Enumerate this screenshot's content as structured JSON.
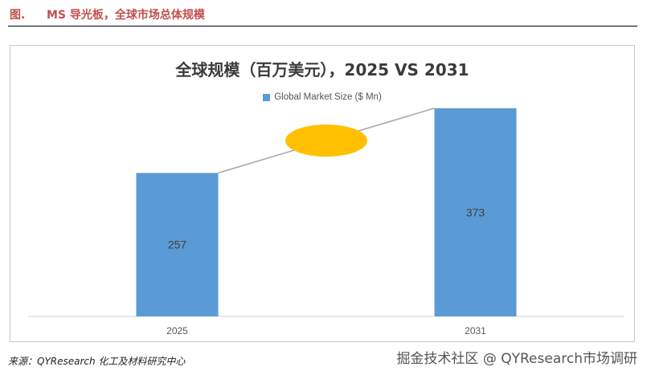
{
  "header": {
    "figure_label": "图.",
    "title": "MS 导光板，全球市场总体规模"
  },
  "chart_data": {
    "type": "bar",
    "title": "全球规模（百万美元），2025 VS 2031",
    "categories": [
      "2025",
      "2031"
    ],
    "series": [
      {
        "name": "Global Market Size ($ Mn)",
        "values": [
          257,
          373
        ]
      }
    ],
    "ylim": [
      0,
      400
    ],
    "grid": false,
    "legend_position": "top",
    "colors": {
      "bar": "#5b9bd5",
      "ellipse": "#ffc000",
      "connector": "#a6a6a6"
    }
  },
  "footer": {
    "source": "来源：QYResearch  化工及材料研究中心",
    "watermark": "掘金技术社区 @ QYResearch市场调研"
  }
}
